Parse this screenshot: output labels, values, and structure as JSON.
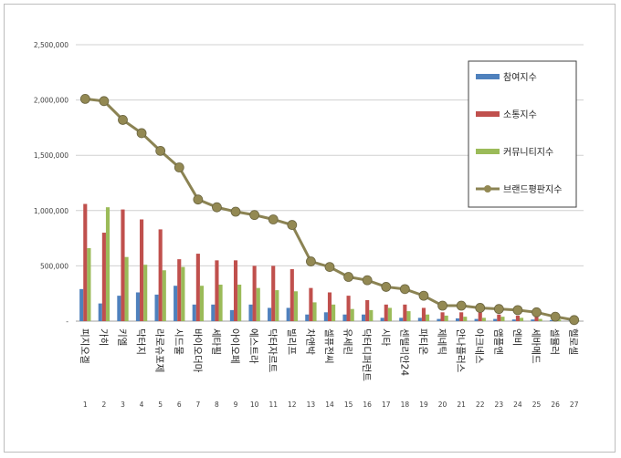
{
  "chart_data": {
    "type": "bar",
    "title": "",
    "xlabel": "",
    "ylabel": "",
    "ylim": [
      0,
      2500000
    ],
    "yticks": [
      "-",
      "500,000",
      "1,000,000",
      "1,500,000",
      "2,000,000",
      "2,500,000"
    ],
    "grid": true,
    "legend_position": "right",
    "categories": [
      "피지오겔",
      "가히",
      "키엘",
      "닥터지",
      "라로슈포제",
      "시드물",
      "바이오더마",
      "세타필",
      "아이오페",
      "에스트라",
      "닥터자르트",
      "빌리프",
      "차앤박",
      "셀퓨전씨",
      "유세린",
      "닥터디퍼런트",
      "시타",
      "센텔리안24",
      "파티온",
      "제네틱",
      "안나플러스",
      "아크네스",
      "앰플엔",
      "엔비",
      "세바메드",
      "셀뮬러",
      "헬로셀"
    ],
    "numbers": [
      "1",
      "2",
      "3",
      "4",
      "5",
      "6",
      "7",
      "8",
      "9",
      "10",
      "11",
      "12",
      "13",
      "14",
      "15",
      "16",
      "17",
      "18",
      "19",
      "20",
      "21",
      "22",
      "23",
      "24",
      "25",
      "26",
      "27"
    ],
    "series": [
      {
        "name": "참여지수",
        "kind": "bar",
        "color": "#4f81bd",
        "values": [
          290000,
          160000,
          230000,
          260000,
          240000,
          320000,
          150000,
          150000,
          100000,
          150000,
          120000,
          120000,
          60000,
          80000,
          60000,
          60000,
          30000,
          30000,
          30000,
          20000,
          25000,
          20000,
          20000,
          15000,
          15000,
          10000,
          5000
        ]
      },
      {
        "name": "소통지수",
        "kind": "bar",
        "color": "#c0504d",
        "values": [
          1060000,
          800000,
          1010000,
          920000,
          830000,
          560000,
          610000,
          550000,
          550000,
          500000,
          500000,
          470000,
          300000,
          260000,
          230000,
          190000,
          150000,
          150000,
          120000,
          80000,
          80000,
          80000,
          60000,
          50000,
          50000,
          30000,
          10000
        ]
      },
      {
        "name": "커뮤니티지수",
        "kind": "bar",
        "color": "#9bbb59",
        "values": [
          660000,
          1030000,
          580000,
          510000,
          460000,
          490000,
          320000,
          330000,
          330000,
          300000,
          280000,
          270000,
          170000,
          150000,
          110000,
          100000,
          120000,
          90000,
          60000,
          50000,
          40000,
          30000,
          40000,
          30000,
          20000,
          15000,
          5000
        ]
      },
      {
        "name": "브랜드평판지수",
        "kind": "line",
        "color": "#8b8353",
        "marker_color": "#938953",
        "values": [
          2010000,
          1990000,
          1820000,
          1700000,
          1540000,
          1390000,
          1100000,
          1030000,
          990000,
          960000,
          920000,
          870000,
          540000,
          490000,
          400000,
          370000,
          310000,
          290000,
          230000,
          140000,
          140000,
          120000,
          110000,
          100000,
          80000,
          40000,
          10000
        ]
      }
    ]
  }
}
